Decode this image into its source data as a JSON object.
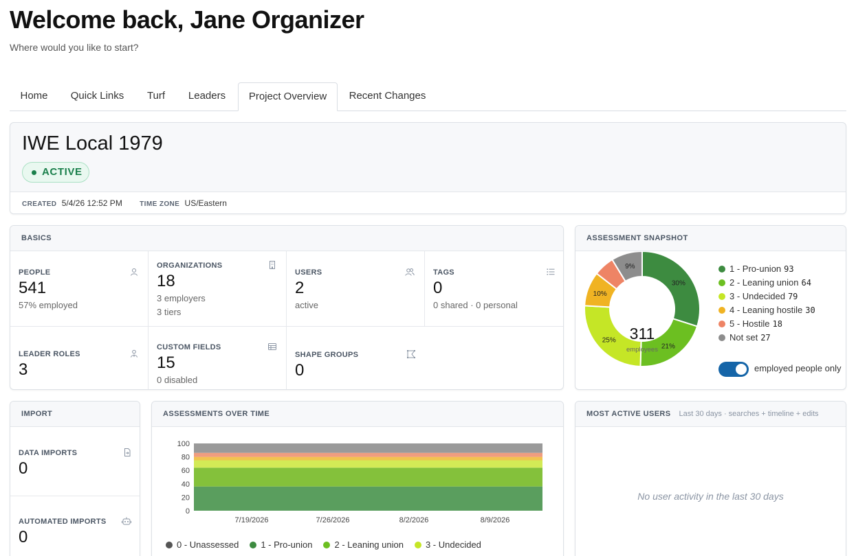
{
  "header": {
    "title": "Welcome back, Jane Organizer",
    "subtitle": "Where would you like to start?"
  },
  "tabs": [
    "Home",
    "Quick Links",
    "Turf",
    "Leaders",
    "Project Overview",
    "Recent Changes"
  ],
  "active_tab": "Project Overview",
  "project": {
    "name": "IWE Local 1979",
    "status": "ACTIVE",
    "created_label": "CREATED",
    "created_value": "5/4/26 12:52 PM",
    "tz_label": "TIME ZONE",
    "tz_value": "US/Eastern"
  },
  "basics": {
    "title": "BASICS",
    "cells": [
      {
        "label": "PEOPLE",
        "value": "541",
        "sub1": "57% employed",
        "sub2": "",
        "icon": "person-icon"
      },
      {
        "label": "ORGANIZATIONS",
        "value": "18",
        "sub1": "3 employers",
        "sub2": "3 tiers",
        "icon": "building-icon"
      },
      {
        "label": "USERS",
        "value": "2",
        "sub1": "active",
        "sub2": "",
        "icon": "users-icon"
      },
      {
        "label": "TAGS",
        "value": "0",
        "sub1": "0 shared · 0 personal",
        "sub2": "",
        "icon": "list-icon"
      },
      {
        "label": "LEADER ROLES",
        "value": "3",
        "sub1": "",
        "sub2": "",
        "icon": "leader-icon"
      },
      {
        "label": "CUSTOM FIELDS",
        "value": "15",
        "sub1": "0 disabled",
        "sub2": "",
        "icon": "table-icon"
      },
      {
        "label": "SHAPE GROUPS",
        "value": "0",
        "sub1": "",
        "sub2": "",
        "icon": "shape-icon"
      }
    ]
  },
  "snapshot": {
    "title": "ASSESSMENT SNAPSHOT",
    "total": "311",
    "total_label": "employees",
    "toggle_label": "employed people only",
    "toggle_on": true,
    "legend": [
      {
        "label": "1 - Pro-union",
        "count": "93",
        "color": "#3d8b40"
      },
      {
        "label": "2 - Leaning union",
        "count": "64",
        "color": "#6cbf21"
      },
      {
        "label": "3 - Undecided",
        "count": "79",
        "color": "#c5e626"
      },
      {
        "label": "4 - Leaning hostile",
        "count": "30",
        "color": "#f0b323"
      },
      {
        "label": "5 - Hostile",
        "count": "18",
        "color": "#ee8465"
      },
      {
        "label": "Not set",
        "count": "27",
        "color": "#8d8d8d"
      }
    ],
    "slice_labels": [
      "30%",
      "21%",
      "25%",
      "10%",
      "",
      "9%"
    ]
  },
  "import": {
    "title": "IMPORT",
    "data_label": "DATA IMPORTS",
    "data_value": "0",
    "auto_label": "AUTOMATED IMPORTS",
    "auto_value": "0"
  },
  "chart_data": {
    "type": "area",
    "title": "ASSESSMENTS OVER TIME",
    "x_ticks": [
      "7/19/2026",
      "7/26/2026",
      "8/2/2026",
      "8/9/2026"
    ],
    "y_ticks": [
      "0",
      "20",
      "40",
      "60",
      "80",
      "100"
    ],
    "ylim": [
      0,
      100
    ],
    "stacking": "percent",
    "series": [
      {
        "name": "1 - Pro-union",
        "value": 36,
        "color": "#5a9e5e"
      },
      {
        "name": "2 - Leaning union",
        "value": 28,
        "color": "#84c13b"
      },
      {
        "name": "3 - Undecided",
        "value": 11,
        "color": "#d3ea56"
      },
      {
        "name": "4 - Leaning hostile",
        "value": 5,
        "color": "#f2c350"
      },
      {
        "name": "5 - Hostile",
        "value": 6,
        "color": "#f09d7f"
      },
      {
        "name": "Not set",
        "value": 14,
        "color": "#9a9a9a"
      }
    ],
    "legend": [
      {
        "label": "0 - Unassessed",
        "color": "#555555"
      },
      {
        "label": "1 - Pro-union",
        "color": "#3d8b40"
      },
      {
        "label": "2 - Leaning union",
        "color": "#6cbf21"
      },
      {
        "label": "3 - Undecided",
        "color": "#c5e626"
      }
    ]
  },
  "most_active": {
    "title": "MOST ACTIVE USERS",
    "note": "Last 30 days · searches + timeline + edits",
    "empty": "No user activity in the last 30 days"
  }
}
